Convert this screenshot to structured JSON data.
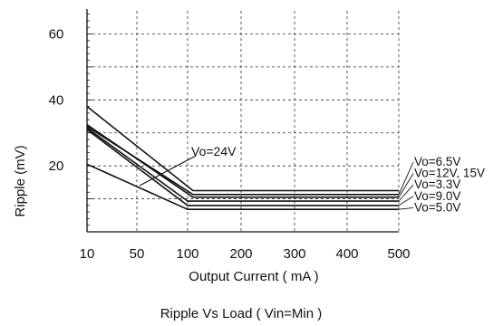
{
  "chart_data": {
    "type": "line",
    "title": "Ripple  Vs Load ( Vin=Min )",
    "xlabel": "Output Current ( mA )",
    "ylabel": "Ripple (mV)",
    "xlim": [
      10,
      500
    ],
    "ylim": [
      0,
      67
    ],
    "x_ticks": [
      {
        "value": 10,
        "label": "10"
      },
      {
        "value": 50,
        "label": "50"
      },
      {
        "value": 100,
        "label": "100"
      },
      {
        "value": 200,
        "label": "200"
      },
      {
        "value": 300,
        "label": "300"
      },
      {
        "value": 400,
        "label": "400"
      },
      {
        "value": 500,
        "label": "500"
      }
    ],
    "y_ticks": [
      {
        "value": 20,
        "label": "20"
      },
      {
        "value": 40,
        "label": "40"
      },
      {
        "value": 60,
        "label": "60"
      }
    ],
    "grid": true,
    "series": [
      {
        "name": "Vo=24V",
        "x": [
          10,
          110,
          500
        ],
        "y": [
          38,
          12.5,
          12.5
        ]
      },
      {
        "name": "Vo=6.5V",
        "x": [
          10,
          110,
          500
        ],
        "y": [
          32,
          11.3,
          11.3
        ]
      },
      {
        "name": "Vo=12V, 15V",
        "x": [
          10,
          110,
          500
        ],
        "y": [
          32.5,
          10.5,
          10.5
        ]
      },
      {
        "name": "Vo=3.3V",
        "x": [
          10,
          100,
          500
        ],
        "y": [
          31.5,
          9.3,
          9.3
        ]
      },
      {
        "name": "Vo=9.0V",
        "x": [
          10,
          100,
          500
        ],
        "y": [
          31,
          8,
          8
        ]
      },
      {
        "name": "Vo=5.0V",
        "x": [
          10,
          100,
          500
        ],
        "y": [
          20.5,
          6.8,
          6.8
        ]
      }
    ],
    "legend": {
      "placement": "right"
    },
    "annotation": {
      "text": "Vo=24V",
      "series": "Vo=24V"
    }
  }
}
